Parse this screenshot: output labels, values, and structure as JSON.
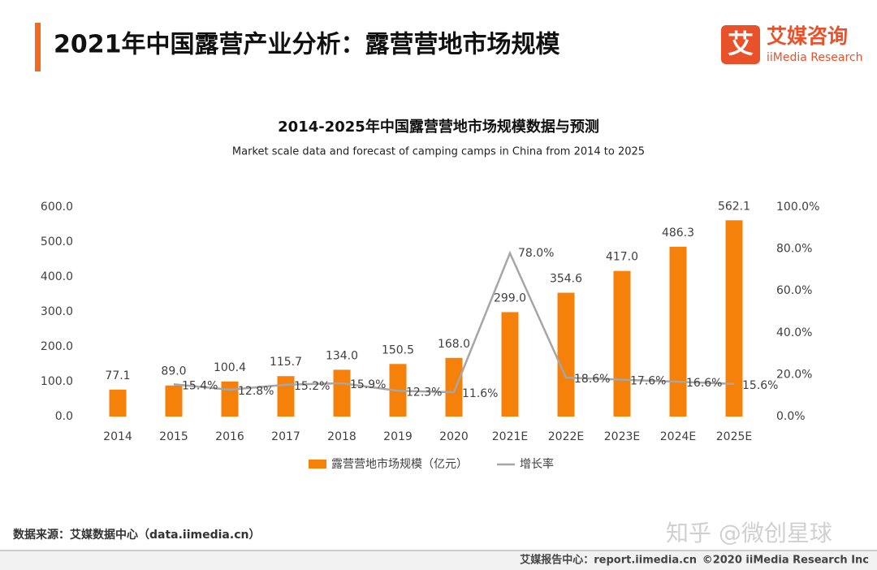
{
  "header": {
    "title": "2021年中国露营产业分析：露营营地市场规模",
    "logo_mark": "艾",
    "logo_name": "艾媒咨询",
    "logo_sub": "iiMedia Research"
  },
  "chart_data": {
    "type": "bar",
    "title": "2014-2025年中国露营营地市场规模数据与预测",
    "subtitle": "Market scale data and forecast of camping camps in China from 2014 to 2025",
    "categories": [
      "2014",
      "2015",
      "2016",
      "2017",
      "2018",
      "2019",
      "2020",
      "2021E",
      "2022E",
      "2023E",
      "2024E",
      "2025E"
    ],
    "series": [
      {
        "name": "露营营地市场规模（亿元）",
        "type": "bar",
        "color": "#f5800a",
        "values": [
          77.1,
          89.0,
          100.4,
          115.7,
          134.0,
          150.5,
          168.0,
          299.0,
          354.6,
          417.0,
          486.3,
          562.1
        ],
        "value_labels": [
          "77.1",
          "89.0",
          "100.4",
          "115.7",
          "134.0",
          "150.5",
          "168.0",
          "299.0",
          "354.6",
          "417.0",
          "486.3",
          "562.1"
        ]
      },
      {
        "name": "增长率",
        "type": "line",
        "axis": "y2",
        "color": "#a6a6a6",
        "values": [
          null,
          15.4,
          12.8,
          15.2,
          15.9,
          12.3,
          11.6,
          78.0,
          18.6,
          17.6,
          16.6,
          15.6
        ],
        "value_labels": [
          null,
          "15.4%",
          "12.8%",
          "15.2%",
          "15.9%",
          "12.3%",
          "11.6%",
          "78.0%",
          "18.6%",
          "17.6%",
          "16.6%",
          "15.6%"
        ]
      }
    ],
    "ylim": [
      0,
      600
    ],
    "yticks": [
      {
        "value": 0,
        "label": "0.0"
      },
      {
        "value": 100,
        "label": "100.0"
      },
      {
        "value": 200,
        "label": "200.0"
      },
      {
        "value": 300,
        "label": "300.0"
      },
      {
        "value": 400,
        "label": "400.0"
      },
      {
        "value": 500,
        "label": "500.0"
      },
      {
        "value": 600,
        "label": "600.0"
      }
    ],
    "y2lim": [
      0,
      100
    ],
    "y2ticks": [
      {
        "value": 0,
        "label": "0.0%"
      },
      {
        "value": 20,
        "label": "20.0%"
      },
      {
        "value": 40,
        "label": "40.0%"
      },
      {
        "value": 60,
        "label": "60.0%"
      },
      {
        "value": 80,
        "label": "80.0%"
      },
      {
        "value": 100,
        "label": "100.0%"
      }
    ],
    "grid": false,
    "legend": "bottom"
  },
  "source": "数据来源：艾媒数据中心（data.iimedia.cn）",
  "watermark": "知乎 @微创星球",
  "footer": {
    "report": "艾媒报告中心：report.iimedia.cn",
    "copyright": "©2020  iiMedia Research  Inc"
  }
}
